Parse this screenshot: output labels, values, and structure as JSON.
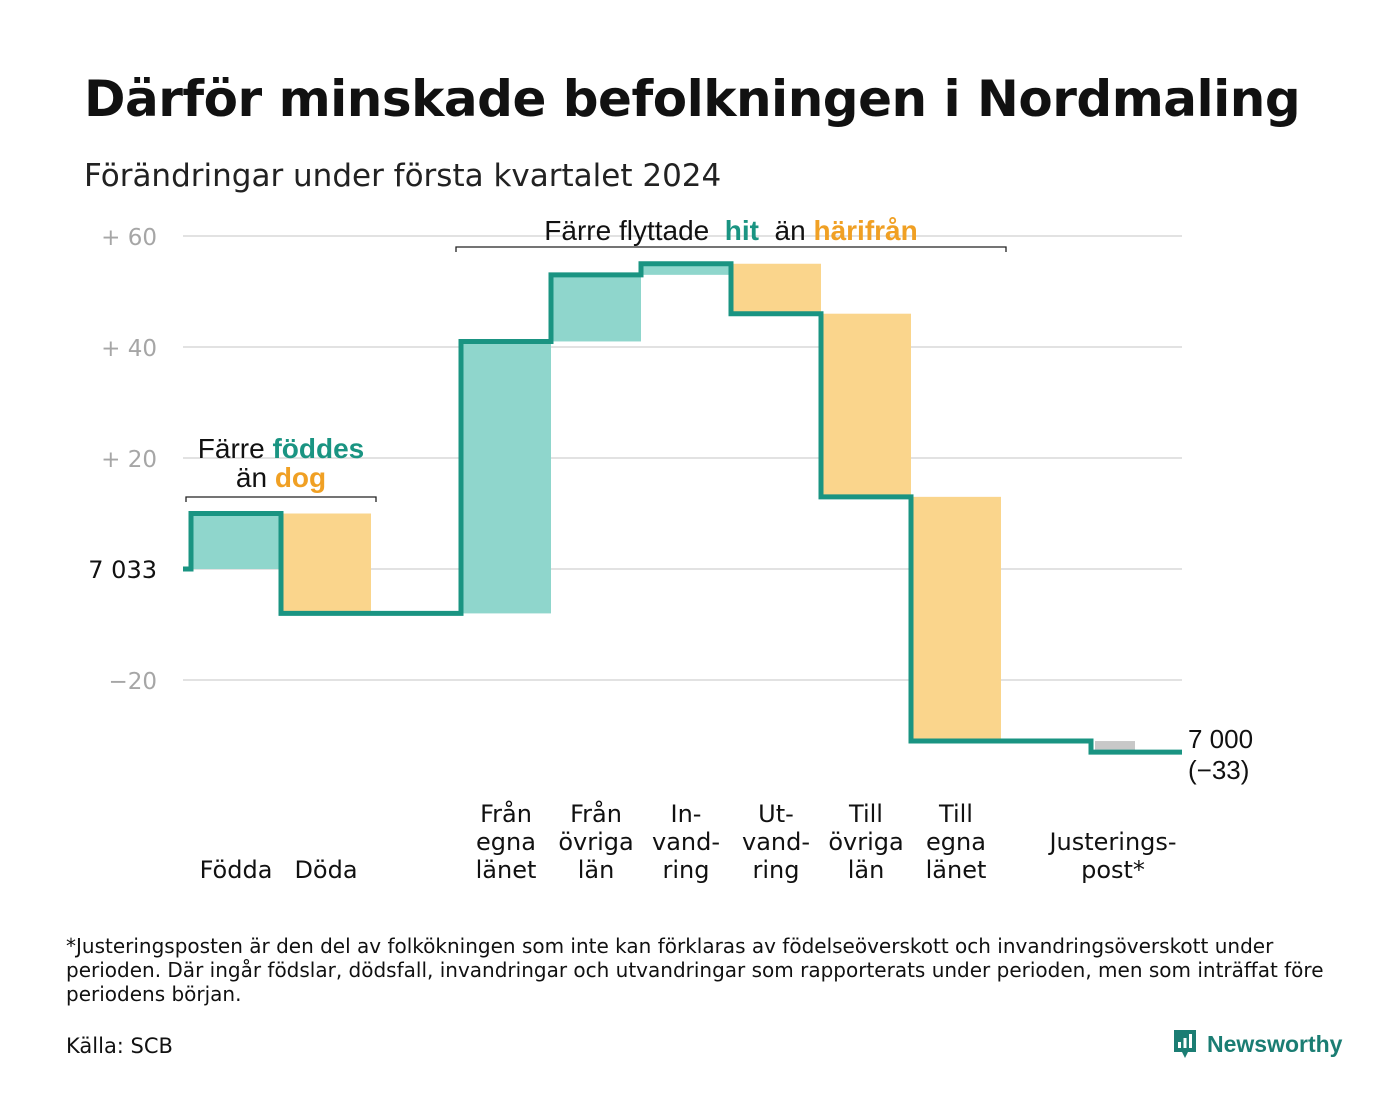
{
  "title": "Därför minskade befolkningen i Nordmaling",
  "subtitle": "Förändringar under första kvartalet 2024",
  "footnote": "*Justeringsposten är den del av folkökningen som inte kan förklaras av födelseöverskott och invandringsöverskott under perioden. Där ingår födslar, dödsfall, invandringar och utvandringar som rapporterats under perioden, men som inträffat före periodens början.",
  "source": "Källa: SCB",
  "brand": "Newsworthy",
  "colors": {
    "increase": "#8fd6cc",
    "decrease": "#fad58c",
    "adjustment": "#c8c8c8",
    "line": "#1a9482",
    "teal_text": "#1a9482",
    "orange_text": "#f0a024",
    "grid": "#e2e2e2",
    "axis_text": "#a6a6a6"
  },
  "chart_data": {
    "type": "waterfall",
    "start_value": 7033,
    "start_label": "7 033",
    "end_value": 7000,
    "end_label": "7 000",
    "end_change_label": "(−33)",
    "y_ticks": [
      {
        "value": 60,
        "label": "+  60"
      },
      {
        "value": 40,
        "label": "+  40"
      },
      {
        "value": 20,
        "label": "+  20"
      },
      {
        "value": 0,
        "label": "7  033"
      },
      {
        "value": -20,
        "label": "−20"
      }
    ],
    "ylim": [
      -33,
      60
    ],
    "steps": [
      {
        "category": "Födda",
        "label_lines": [
          "Födda"
        ],
        "value": 10,
        "kind": "increase"
      },
      {
        "category": "Döda",
        "label_lines": [
          "Döda"
        ],
        "value": -18,
        "kind": "decrease"
      },
      {
        "category": "gap",
        "label_lines": [],
        "value": 0,
        "kind": "gap"
      },
      {
        "category": "Från egna länet",
        "label_lines": [
          "Från",
          "egna",
          "länet"
        ],
        "value": 49,
        "kind": "increase"
      },
      {
        "category": "Från övriga län",
        "label_lines": [
          "Från",
          "övriga",
          "län"
        ],
        "value": 12,
        "kind": "increase"
      },
      {
        "category": "Invandring",
        "label_lines": [
          "In-",
          "vand-",
          "ring"
        ],
        "value": 2,
        "kind": "increase"
      },
      {
        "category": "Utvandring",
        "label_lines": [
          "Ut-",
          "vand-",
          "ring"
        ],
        "value": -9,
        "kind": "decrease"
      },
      {
        "category": "Till övriga län",
        "label_lines": [
          "Till",
          "övriga",
          "län"
        ],
        "value": -33,
        "kind": "decrease"
      },
      {
        "category": "Till egna länet",
        "label_lines": [
          "Till",
          "egna",
          "länet"
        ],
        "value": -44,
        "kind": "decrease"
      },
      {
        "category": "gap",
        "label_lines": [],
        "value": 0,
        "kind": "gap"
      },
      {
        "category": "Justeringspost*",
        "label_lines": [
          "Justerings-",
          "post*"
        ],
        "value": -2,
        "kind": "adjustment"
      }
    ],
    "annotations": [
      {
        "id": "births",
        "line1": [
          {
            "text": "Färre ",
            "color": "dark",
            "bold": false
          },
          {
            "text": "föddes",
            "color": "teal",
            "bold": true
          }
        ],
        "line2": [
          {
            "text": "än ",
            "color": "dark",
            "bold": false
          },
          {
            "text": "dog",
            "color": "orange",
            "bold": true
          }
        ],
        "from_step": 0,
        "to_step": 1
      },
      {
        "id": "migration",
        "line1": [
          {
            "text": "Färre flyttade  ",
            "color": "dark",
            "bold": false
          },
          {
            "text": "hit",
            "color": "teal",
            "bold": true
          },
          {
            "text": "  än ",
            "color": "dark",
            "bold": false
          },
          {
            "text": "härifrån",
            "color": "orange",
            "bold": true
          }
        ],
        "line2": [],
        "from_step": 3,
        "to_step": 8
      }
    ]
  }
}
